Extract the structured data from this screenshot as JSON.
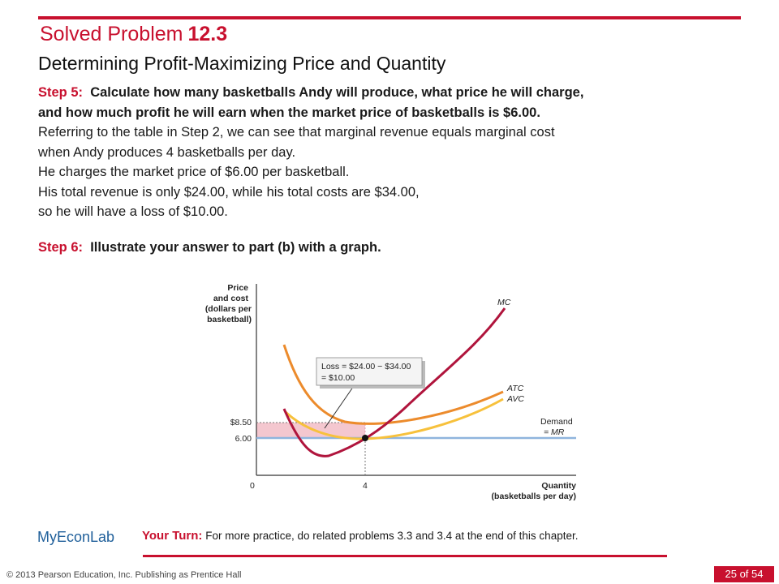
{
  "header": {
    "title_prefix": "Solved Problem",
    "title_number": "12.3",
    "subtitle": "Determining Profit-Maximizing Price and Quantity"
  },
  "step5": {
    "label": "Step 5:",
    "heading_line1": "Calculate how many basketballs Andy will produce, what price he will charge,",
    "heading_line2": "and how much profit he will earn when the market price of basketballs is $6.00.",
    "lines": [
      "Referring to the table in Step 2, we can see that marginal revenue equals marginal cost",
      "when Andy produces 4 basketballs per day.",
      "He charges the market price of $6.00 per basketball.",
      "His total revenue is only $24.00, while his total costs are $34.00,",
      "so he will have a loss of $10.00."
    ]
  },
  "step6": {
    "label": "Step 6:",
    "text": "Illustrate your answer to part (b) with a graph."
  },
  "chart_data": {
    "type": "line",
    "ylabel": "Price and cost (dollars per basketball)",
    "ylabel_lines": [
      "Price",
      "and cost",
      "(dollars per",
      "basketball)"
    ],
    "xlabel_lines": [
      "Quantity",
      "(basketballs per day)"
    ],
    "x_ticks": [
      "0",
      "4"
    ],
    "y_ticks": [
      "$8.50",
      "6.00"
    ],
    "curves": [
      "MC",
      "ATC",
      "AVC",
      "Demand = MR"
    ],
    "demand_label": [
      "Demand",
      "= MR"
    ],
    "mc_label": "MC",
    "atc_label": "ATC",
    "avc_label": "AVC",
    "price": 6.0,
    "atc_at_q": 8.5,
    "quantity": 4,
    "loss_box_lines": [
      "Loss = $24.00 − $34.00",
      "= $10.00"
    ],
    "colors": {
      "mc": "#b0143c",
      "atc": "#ec8b2c",
      "avc": "#f7c13c",
      "demand": "#8fb4dd",
      "loss_area": "#f4c7cf"
    }
  },
  "footer": {
    "myeconlab": "MyEconLab",
    "your_turn_label": "Your Turn:",
    "your_turn_text": "For more practice, do related problems 3.3 and 3.4 at the end of this chapter.",
    "copyright": "© 2013 Pearson Education, Inc. Publishing as Prentice Hall",
    "page": "25 of 54"
  }
}
